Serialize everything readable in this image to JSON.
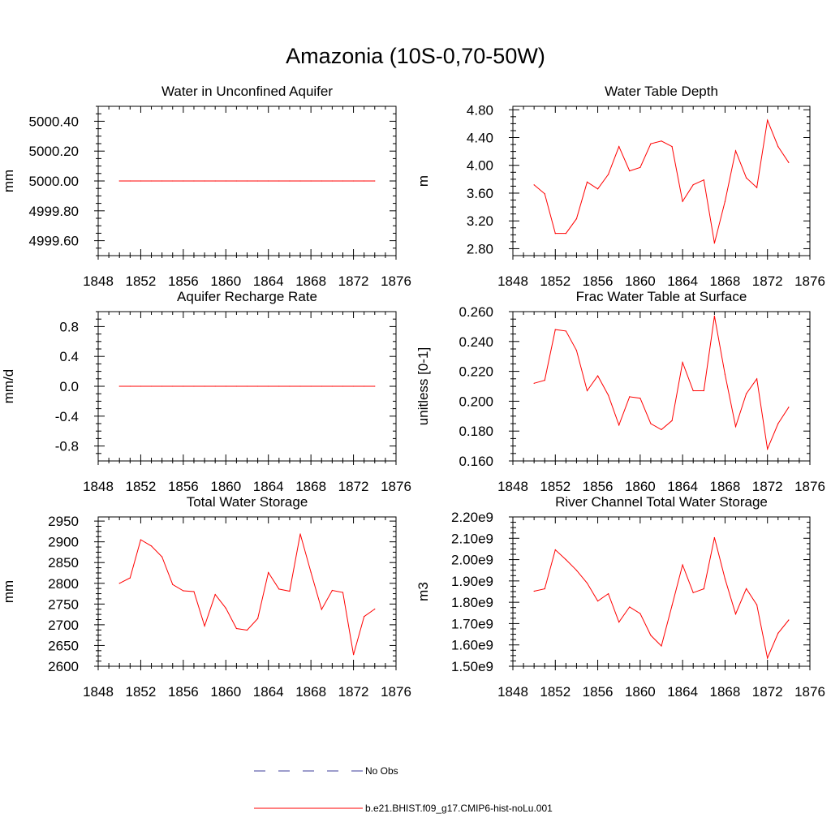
{
  "page": {
    "title": "Amazonia (10S-0,70-50W)"
  },
  "colors": {
    "model_line": "#ff0000",
    "obs_line": "#3b3b9a",
    "axis": "#000000"
  },
  "legend": {
    "entries": [
      {
        "label": "No Obs",
        "style": "dashed",
        "color": "#3b3b9a"
      },
      {
        "label": "b.e21.BHIST.f09_g17.CMIP6-hist-noLu.001",
        "style": "solid",
        "color": "#ff0000"
      }
    ]
  },
  "chart_data": [
    {
      "type": "line",
      "title": "Water in Unconfined Aquifer",
      "ylabel": "mm",
      "xlim": [
        1848,
        1876
      ],
      "ylim": [
        4999.5,
        5000.5
      ],
      "xticks": [
        1848,
        1852,
        1856,
        1860,
        1864,
        1868,
        1872,
        1876
      ],
      "yticks": [
        4999.6,
        4999.8,
        5000.0,
        5000.2,
        5000.4
      ],
      "yticklabels": [
        "4999.60",
        "4999.80",
        "5000.00",
        "5000.20",
        "5000.40"
      ],
      "x": [
        1850,
        1851,
        1852,
        1853,
        1854,
        1855,
        1856,
        1857,
        1858,
        1859,
        1860,
        1861,
        1862,
        1863,
        1864,
        1865,
        1866,
        1867,
        1868,
        1869,
        1870,
        1871,
        1872,
        1873,
        1874
      ],
      "series": [
        {
          "values": [
            5000,
            5000,
            5000,
            5000,
            5000,
            5000,
            5000,
            5000,
            5000,
            5000,
            5000,
            5000,
            5000,
            5000,
            5000,
            5000,
            5000,
            5000,
            5000,
            5000,
            5000,
            5000,
            5000,
            5000,
            5000
          ]
        }
      ]
    },
    {
      "type": "line",
      "title": "Water Table Depth",
      "ylabel": "m",
      "xlim": [
        1848,
        1876
      ],
      "ylim": [
        2.7,
        4.85
      ],
      "xticks": [
        1848,
        1852,
        1856,
        1860,
        1864,
        1868,
        1872,
        1876
      ],
      "yticks": [
        2.8,
        3.2,
        3.6,
        4.0,
        4.4,
        4.8
      ],
      "yticklabels": [
        "2.80",
        "3.20",
        "3.60",
        "4.00",
        "4.40",
        "4.80"
      ],
      "x": [
        1850,
        1851,
        1852,
        1853,
        1854,
        1855,
        1856,
        1857,
        1858,
        1859,
        1860,
        1861,
        1862,
        1863,
        1864,
        1865,
        1866,
        1867,
        1868,
        1869,
        1870,
        1871,
        1872,
        1873,
        1874
      ],
      "series": [
        {
          "values": [
            3.72,
            3.59,
            3.02,
            3.02,
            3.23,
            3.76,
            3.66,
            3.87,
            4.27,
            3.92,
            3.97,
            4.31,
            4.35,
            4.27,
            3.48,
            3.72,
            3.79,
            2.88,
            3.48,
            4.21,
            3.82,
            3.68,
            4.65,
            4.27,
            4.04
          ]
        }
      ]
    },
    {
      "type": "line",
      "title": "Aquifer Recharge Rate",
      "ylabel": "mm/d",
      "xlim": [
        1848,
        1876
      ],
      "ylim": [
        -1.0,
        1.0
      ],
      "xticks": [
        1848,
        1852,
        1856,
        1860,
        1864,
        1868,
        1872,
        1876
      ],
      "yticks": [
        -0.8,
        -0.4,
        0.0,
        0.4,
        0.8
      ],
      "yticklabels": [
        "-0.8",
        "-0.4",
        "0.0",
        "0.4",
        "0.8"
      ],
      "x": [
        1850,
        1851,
        1852,
        1853,
        1854,
        1855,
        1856,
        1857,
        1858,
        1859,
        1860,
        1861,
        1862,
        1863,
        1864,
        1865,
        1866,
        1867,
        1868,
        1869,
        1870,
        1871,
        1872,
        1873,
        1874
      ],
      "series": [
        {
          "values": [
            0,
            0,
            0,
            0,
            0,
            0,
            0,
            0,
            0,
            0,
            0,
            0,
            0,
            0,
            0,
            0,
            0,
            0,
            0,
            0,
            0,
            0,
            0,
            0,
            0
          ]
        }
      ]
    },
    {
      "type": "line",
      "title": "Frac Water Table at Surface",
      "ylabel": "unitless [0-1]",
      "xlim": [
        1848,
        1876
      ],
      "ylim": [
        0.16,
        0.26
      ],
      "xticks": [
        1848,
        1852,
        1856,
        1860,
        1864,
        1868,
        1872,
        1876
      ],
      "yticks": [
        0.16,
        0.18,
        0.2,
        0.22,
        0.24,
        0.26
      ],
      "yticklabels": [
        "0.160",
        "0.180",
        "0.200",
        "0.220",
        "0.240",
        "0.260"
      ],
      "x": [
        1850,
        1851,
        1852,
        1853,
        1854,
        1855,
        1856,
        1857,
        1858,
        1859,
        1860,
        1861,
        1862,
        1863,
        1864,
        1865,
        1866,
        1867,
        1868,
        1869,
        1870,
        1871,
        1872,
        1873,
        1874
      ],
      "series": [
        {
          "values": [
            0.212,
            0.214,
            0.248,
            0.247,
            0.234,
            0.207,
            0.217,
            0.204,
            0.184,
            0.203,
            0.202,
            0.185,
            0.181,
            0.187,
            0.226,
            0.207,
            0.207,
            0.257,
            0.218,
            0.183,
            0.205,
            0.215,
            0.168,
            0.185,
            0.196
          ]
        }
      ]
    },
    {
      "type": "line",
      "title": "Total Water Storage",
      "ylabel": "mm",
      "xlim": [
        1848,
        1876
      ],
      "ylim": [
        2600,
        2960
      ],
      "xticks": [
        1848,
        1852,
        1856,
        1860,
        1864,
        1868,
        1872,
        1876
      ],
      "yticks": [
        2600,
        2650,
        2700,
        2750,
        2800,
        2850,
        2900,
        2950
      ],
      "yticklabels": [
        "2600",
        "2650",
        "2700",
        "2750",
        "2800",
        "2850",
        "2900",
        "2950"
      ],
      "x": [
        1850,
        1851,
        1852,
        1853,
        1854,
        1855,
        1856,
        1857,
        1858,
        1859,
        1860,
        1861,
        1862,
        1863,
        1864,
        1865,
        1866,
        1867,
        1868,
        1869,
        1870,
        1871,
        1872,
        1873,
        1874
      ],
      "series": [
        {
          "values": [
            2800,
            2813,
            2905,
            2890,
            2864,
            2797,
            2782,
            2780,
            2697,
            2773,
            2740,
            2691,
            2687,
            2715,
            2826,
            2786,
            2781,
            2919,
            2827,
            2737,
            2783,
            2778,
            2628,
            2720,
            2738
          ]
        }
      ]
    },
    {
      "type": "line",
      "title": "River Channel Total Water Storage",
      "ylabel": "m3",
      "xlim": [
        1848,
        1876
      ],
      "ylim": [
        1500000000.0,
        2200000000.0
      ],
      "xticks": [
        1848,
        1852,
        1856,
        1860,
        1864,
        1868,
        1872,
        1876
      ],
      "yticks": [
        1500000000.0,
        1600000000.0,
        1700000000.0,
        1800000000.0,
        1900000000.0,
        2000000000.0,
        2100000000.0,
        2200000000.0
      ],
      "yticklabels": [
        "1.50e9",
        "1.60e9",
        "1.70e9",
        "1.80e9",
        "1.90e9",
        "2.00e9",
        "2.10e9",
        "2.20e9"
      ],
      "x": [
        1850,
        1851,
        1852,
        1853,
        1854,
        1855,
        1856,
        1857,
        1858,
        1859,
        1860,
        1861,
        1862,
        1863,
        1864,
        1865,
        1866,
        1867,
        1868,
        1869,
        1870,
        1871,
        1872,
        1873,
        1874
      ],
      "series": [
        {
          "values": [
            1852000000.0,
            1863000000.0,
            2046000000.0,
            2000000000.0,
            1950000000.0,
            1890000000.0,
            1806000000.0,
            1840000000.0,
            1707000000.0,
            1778000000.0,
            1747000000.0,
            1645000000.0,
            1595000000.0,
            1785000000.0,
            1975000000.0,
            1845000000.0,
            1863000000.0,
            2103000000.0,
            1910000000.0,
            1745000000.0,
            1864000000.0,
            1788000000.0,
            1538000000.0,
            1655000000.0,
            1717000000.0
          ]
        }
      ]
    }
  ]
}
